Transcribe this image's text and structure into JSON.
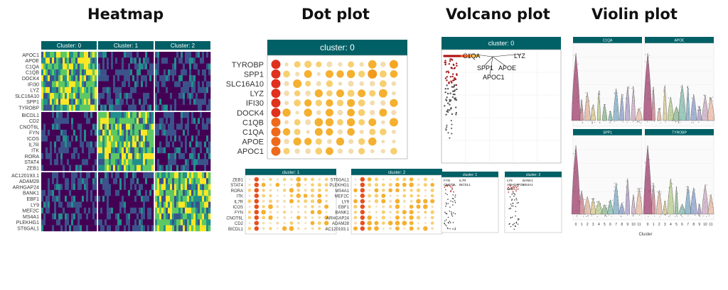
{
  "titles": {
    "heatmap": "Heatmap",
    "dotplot": "Dot plot",
    "volcano": "Volcano plot",
    "violin": "Violin plot"
  },
  "heatmap": {
    "clusters": [
      "Cluster: 0",
      "Cluster: 1",
      "Cluster: 2"
    ],
    "gene_groups": [
      [
        "APOC1",
        "APOE",
        "C1QA",
        "C1QB",
        "DOCK4",
        "IFI30",
        "LYZ",
        "SLC16A10",
        "SPP1",
        "TYROBP"
      ],
      [
        "BICDL1",
        "CD2",
        "CNOT6L",
        "FYN",
        "ICOS",
        "IL7R",
        "ITK",
        "RORA",
        "STAT4",
        "ZEB1"
      ],
      [
        "AC120193.1",
        "ADAM28",
        "ARHGAP24",
        "BANK1",
        "EBF1",
        "LY9",
        "MEF2C",
        "MS4A1",
        "PLEKHG1",
        "ST6GAL1"
      ]
    ],
    "colors": [
      "#440154",
      "#3b528b",
      "#21908c",
      "#5dc863",
      "#fde725"
    ]
  },
  "dotplot_main": {
    "strip": "cluster: 0",
    "genes": [
      "TYROBP",
      "SPP1",
      "SLC16A10",
      "LYZ",
      "IFI30",
      "DOCK4",
      "C1QB",
      "C1QA",
      "APOE",
      "APOC1"
    ]
  },
  "dotplot_small": [
    {
      "strip": "cluster: 1",
      "genes": [
        "ZEB1",
        "STAT4",
        "RORA",
        "ITK",
        "IL7R",
        "ICOS",
        "FYN",
        "CNOT6L",
        "CD2",
        "BICDL1"
      ]
    },
    {
      "strip": "cluster: 2",
      "genes": [
        "ST6GAL1",
        "PLEKHG1",
        "MS4A1",
        "MEF2C",
        "LY9",
        "EBF1",
        "BANK1",
        "ARHGAP24",
        "ADAM28",
        "AC120193.1"
      ]
    }
  ],
  "volcano": {
    "main_strip": "cluster: 0",
    "main_labels": [
      "C1QA",
      "LYZ",
      "SPP1",
      "APOE",
      "APOC1"
    ],
    "small": [
      {
        "strip": "cluster: 1",
        "labels": [
          "FYN",
          "IL7R",
          "CNOT6L",
          "BICDL1"
        ]
      },
      {
        "strip": "cluster: 2",
        "labels": [
          "LY9",
          "BANK1",
          "ARHGAP24",
          "MS4A1",
          "EBF1"
        ]
      }
    ]
  },
  "violin": {
    "panels": [
      "C1QA",
      "APOE",
      "SPP1",
      "TYROBP"
    ],
    "x_ticks": [
      "0",
      "1",
      "2",
      "3",
      "4",
      "5",
      "6",
      "7",
      "8",
      "9",
      "10",
      "11"
    ],
    "x_label": "Cluster",
    "colors": [
      "#9c3b6a",
      "#c87a8a",
      "#e0b09a",
      "#d9c58a",
      "#b5c98a",
      "#8ab58c",
      "#7fb8a8",
      "#7aa8c4",
      "#8a9cc8",
      "#a89ac4",
      "#c8a8c0",
      "#e8b8a0"
    ]
  },
  "chart_data": [
    {
      "type": "heatmap",
      "title": "Heatmap",
      "columns": [
        "Cluster: 0",
        "Cluster: 1",
        "Cluster: 2"
      ],
      "rows": [
        "APOC1",
        "APOE",
        "C1QA",
        "C1QB",
        "DOCK4",
        "IFI30",
        "LYZ",
        "SLC16A10",
        "SPP1",
        "TYROBP",
        "BICDL1",
        "CD2",
        "CNOT6L",
        "FYN",
        "ICOS",
        "IL7R",
        "ITK",
        "RORA",
        "STAT4",
        "ZEB1",
        "AC120193.1",
        "ADAM28",
        "ARHGAP24",
        "BANK1",
        "EBF1",
        "LY9",
        "MEF2C",
        "MS4A1",
        "PLEKHG1",
        "ST6GAL1"
      ],
      "high_block_by_cluster": [
        [
          0,
          0,
          1
        ],
        [
          1,
          0,
          2
        ],
        [
          2,
          0,
          3
        ]
      ]
    },
    {
      "type": "scatter",
      "title": "Dot plot",
      "facet": "cluster: 0",
      "y_categories": [
        "TYROBP",
        "SPP1",
        "SLC16A10",
        "LYZ",
        "IFI30",
        "DOCK4",
        "C1QB",
        "C1QA",
        "APOE",
        "APOC1"
      ],
      "n_columns": 12
    },
    {
      "type": "scatter",
      "title": "Volcano plot",
      "facet": "cluster: 0",
      "labelled_points": [
        "C1QA",
        "LYZ",
        "SPP1",
        "APOE",
        "APOC1"
      ]
    },
    {
      "type": "area",
      "title": "Violin plot",
      "facets": [
        "C1QA",
        "APOE",
        "SPP1",
        "TYROBP"
      ],
      "x_categories": [
        "0",
        "1",
        "2",
        "3",
        "4",
        "5",
        "6",
        "7",
        "8",
        "9",
        "10",
        "11"
      ],
      "xlabel": "Cluster"
    }
  ]
}
